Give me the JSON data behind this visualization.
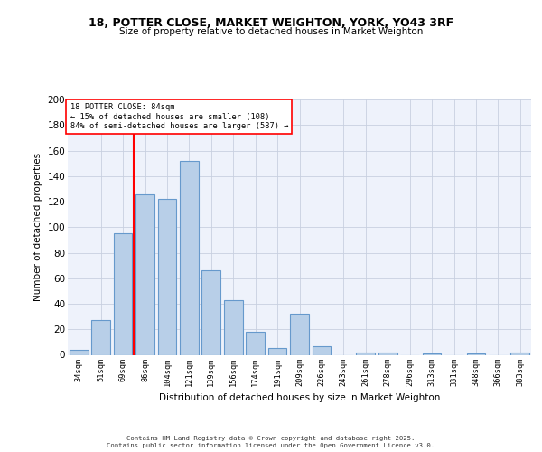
{
  "title1": "18, POTTER CLOSE, MARKET WEIGHTON, YORK, YO43 3RF",
  "title2": "Size of property relative to detached houses in Market Weighton",
  "xlabel": "Distribution of detached houses by size in Market Weighton",
  "ylabel": "Number of detached properties",
  "categories": [
    "34sqm",
    "51sqm",
    "69sqm",
    "86sqm",
    "104sqm",
    "121sqm",
    "139sqm",
    "156sqm",
    "174sqm",
    "191sqm",
    "209sqm",
    "226sqm",
    "243sqm",
    "261sqm",
    "278sqm",
    "296sqm",
    "313sqm",
    "331sqm",
    "348sqm",
    "366sqm",
    "383sqm"
  ],
  "values": [
    4,
    27,
    95,
    126,
    122,
    152,
    66,
    43,
    18,
    5,
    32,
    7,
    0,
    2,
    2,
    0,
    1,
    0,
    1,
    0,
    2
  ],
  "bar_color": "#b8cfe8",
  "bar_edge_color": "#6699cc",
  "vline_color": "red",
  "annotation_text": "18 POTTER CLOSE: 84sqm\n← 15% of detached houses are smaller (108)\n84% of semi-detached houses are larger (587) →",
  "ylim": [
    0,
    200
  ],
  "yticks": [
    0,
    20,
    40,
    60,
    80,
    100,
    120,
    140,
    160,
    180,
    200
  ],
  "footer": "Contains HM Land Registry data © Crown copyright and database right 2025.\nContains public sector information licensed under the Open Government Licence v3.0.",
  "bg_color": "#eef2fb",
  "grid_color": "#c8d0e0",
  "vline_pos": 2.5
}
